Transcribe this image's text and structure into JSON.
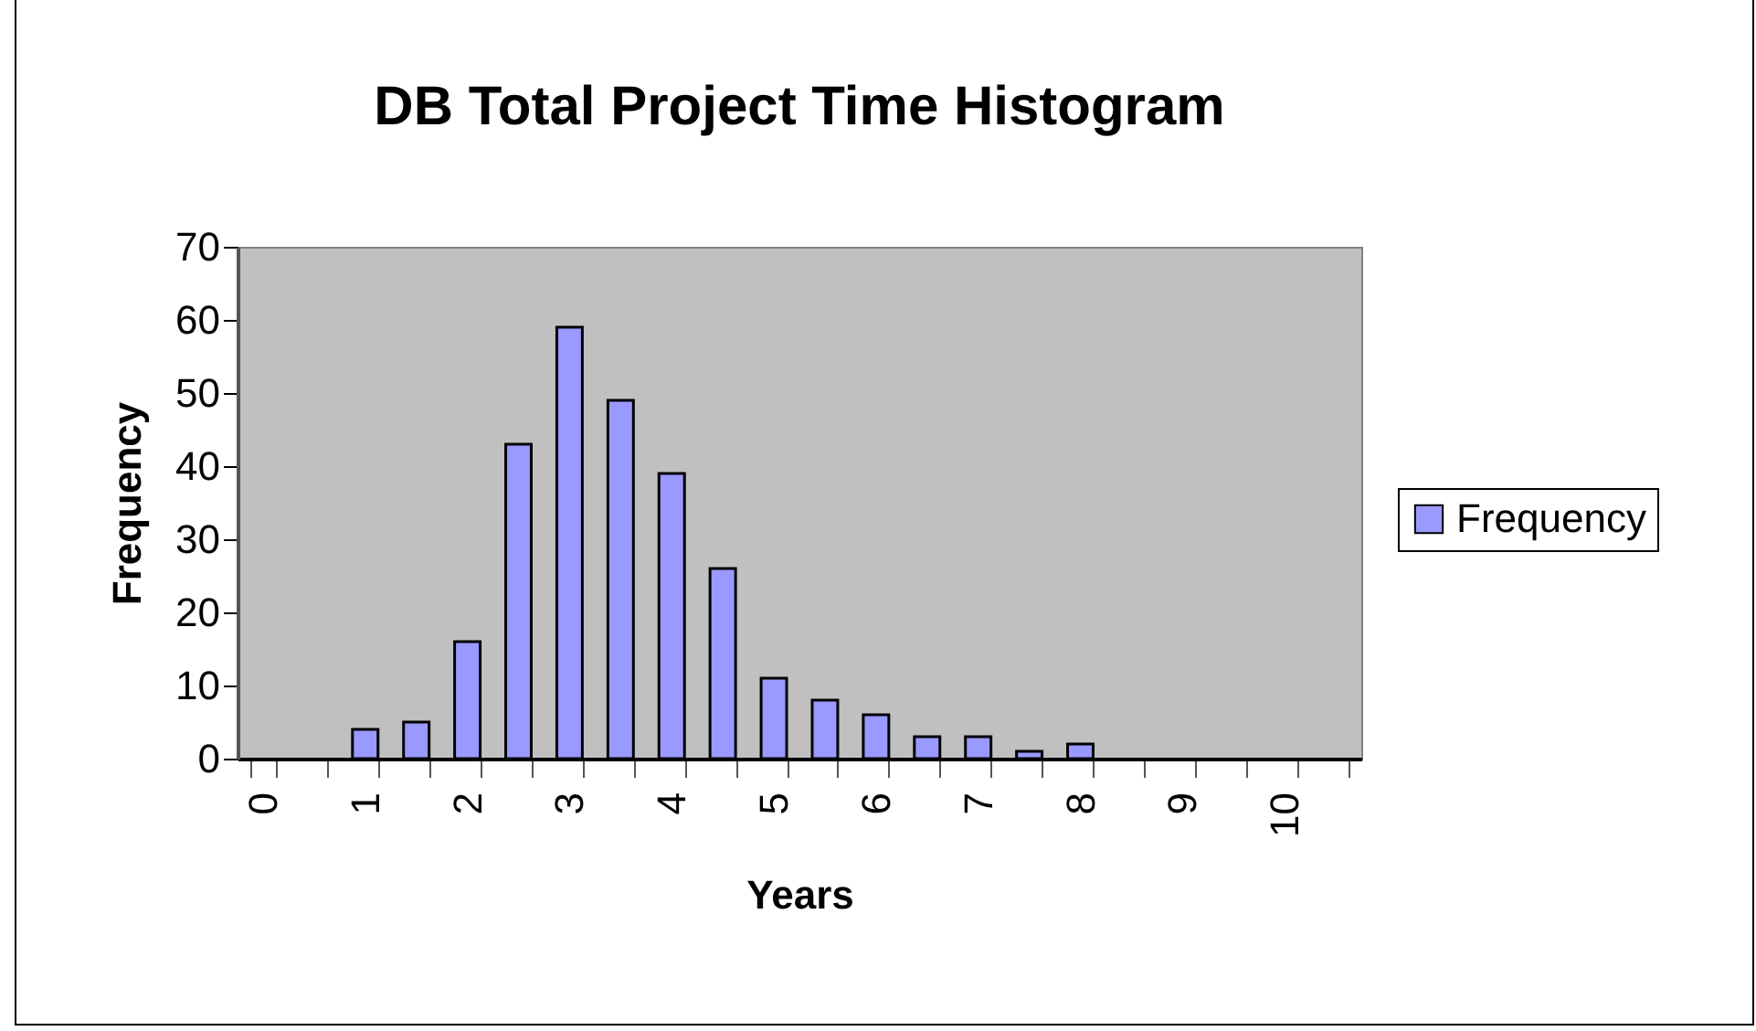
{
  "chart_data": {
    "type": "bar",
    "title": "DB Total Project Time Histogram",
    "xlabel": "Years",
    "ylabel": "Frequency",
    "categories": [
      "0",
      null,
      "1",
      null,
      "2",
      null,
      "3",
      null,
      "4",
      null,
      "5",
      null,
      "6",
      null,
      "7",
      null,
      "8",
      null,
      "9",
      null,
      "10",
      null
    ],
    "series": [
      {
        "name": "Frequency",
        "color": "#9999ff",
        "values": [
          0,
          0,
          4,
          5,
          16,
          43,
          59,
          49,
          39,
          26,
          11,
          8,
          6,
          3,
          3,
          1,
          2,
          0,
          0,
          0,
          0,
          0
        ]
      }
    ],
    "ylim": [
      0,
      70
    ],
    "yticks": [
      0,
      10,
      20,
      30,
      40,
      50,
      60,
      70
    ],
    "grid": false,
    "legend": "right"
  }
}
